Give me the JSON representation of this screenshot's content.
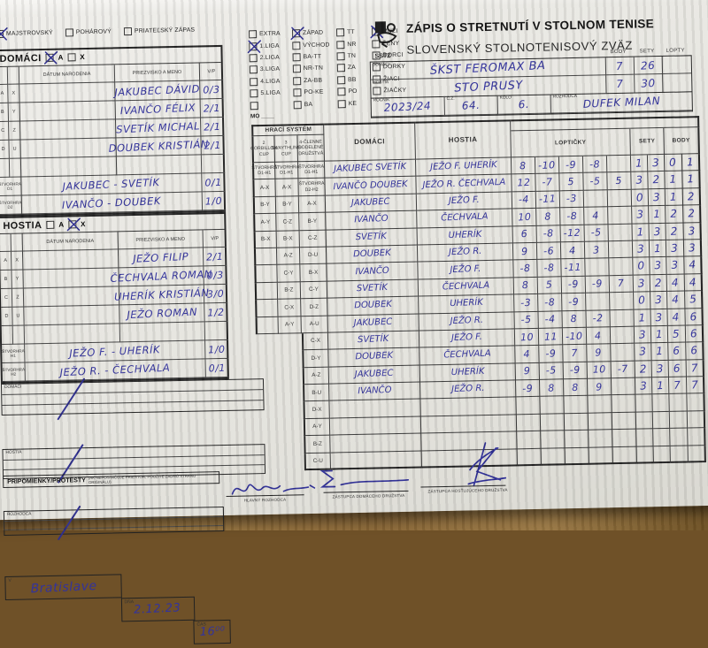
{
  "header": {
    "title": "ZÁPIS O STRETNUTÍ V STOLNOM TENISE",
    "subtitle": "SLOVENSKÝ STOLNOTENISOVÝ ZVÄZ",
    "logo_text": "SSTZ",
    "score_columns": [
      "BODY",
      "SETY",
      "LOPTY"
    ],
    "domaci_label": "DOMÁCI",
    "hostia_label": "HOSTIA",
    "home_team": {
      "name": "ŠKST FEROMAX BA",
      "body": "7",
      "sety": "26",
      "lopty": ""
    },
    "away_team": {
      "name": "STO PRUSY",
      "body": "7",
      "sety": "30",
      "lopty": ""
    },
    "rocnik_label": "ROČNÍK",
    "rocnik_value": "2023/24",
    "cz_label": "Č.Z.",
    "cz_value": "64.",
    "kolo_label": "KOLO",
    "kolo_value": "6.",
    "rozhodca_label": "ROZHODCA",
    "rozhodca_value": "DUFEK MILAN"
  },
  "match_type": {
    "options": [
      {
        "label": "MAJSTROVSKÝ",
        "checked": true
      },
      {
        "label": "POHÁROVÝ",
        "checked": false
      },
      {
        "label": "PRIATEĽSKÝ ZÁPAS",
        "checked": false
      }
    ]
  },
  "league_panel": {
    "mo_label": "MO ____",
    "col1": [
      {
        "label": "EXTRA",
        "checked": false
      },
      {
        "label": "1.LIGA",
        "checked": true
      },
      {
        "label": "2.LIGA",
        "checked": false
      },
      {
        "label": "3.LIGA",
        "checked": false
      },
      {
        "label": "4.LIGA",
        "checked": false
      },
      {
        "label": "5.LIGA",
        "checked": false
      },
      {
        "label": "",
        "checked": false
      }
    ],
    "col2": [
      {
        "label": "ZÁPAD",
        "checked": true
      },
      {
        "label": "VÝCHOD",
        "checked": false
      },
      {
        "label": "BA-TT",
        "checked": false
      },
      {
        "label": "NR-TN",
        "checked": false
      },
      {
        "label": "ZA-BB",
        "checked": false
      },
      {
        "label": "PO-KE",
        "checked": false
      },
      {
        "label": "BA",
        "checked": false
      }
    ],
    "col3": [
      {
        "label": "TT",
        "checked": false
      },
      {
        "label": "NR",
        "checked": false
      },
      {
        "label": "TN",
        "checked": false
      },
      {
        "label": "ZA",
        "checked": false
      },
      {
        "label": "BB",
        "checked": false
      },
      {
        "label": "PO",
        "checked": false
      },
      {
        "label": "KE",
        "checked": false
      }
    ],
    "col4": [
      {
        "label": "MUŽI",
        "checked": true
      },
      {
        "label": "ŽENY",
        "checked": false
      },
      {
        "label": "DORCI",
        "checked": false
      },
      {
        "label": "DORKY",
        "checked": false
      },
      {
        "label": "ŽIACI",
        "checked": false
      },
      {
        "label": "ŽIAČKY",
        "checked": false
      }
    ]
  },
  "home_roster": {
    "section_label": "DOMÁCI",
    "check_a_label": "A",
    "check_x_label": "X",
    "check_a": true,
    "check_x": false,
    "col_headers": {
      "birth": "DÁTUM NARODENIA",
      "name": "PRIEZVISKO A MENO",
      "vp": "V/P"
    },
    "players": [
      {
        "r1": "A",
        "r2": "X",
        "birth": "",
        "name": "JAKUBEC DÁVID",
        "vp": "0/3"
      },
      {
        "r1": "B",
        "r2": "Y",
        "birth": "",
        "name": "IVANČO FÉLIX",
        "vp": "2/1"
      },
      {
        "r1": "C",
        "r2": "Z",
        "birth": "",
        "name": "SVETÍK MICHAL",
        "vp": "2/1"
      },
      {
        "r1": "D",
        "r2": "U",
        "birth": "",
        "name": "DOUBEK KRISTIÁN",
        "vp": "2/1"
      },
      {
        "r1": "",
        "r2": "",
        "birth": "",
        "name": "",
        "vp": ""
      }
    ],
    "doubles": [
      {
        "label": "ŠTVORHRA D1",
        "name": "JAKUBEC - SVETÍK",
        "vp": "0/1"
      },
      {
        "label": "ŠTVORHRA D2",
        "name": "IVANČO - DOUBEK",
        "vp": "1/0"
      }
    ]
  },
  "away_roster": {
    "section_label": "HOSTIA",
    "check_a_label": "A",
    "check_x_label": "X",
    "check_a": false,
    "check_x": true,
    "col_headers": {
      "birth": "DÁTUM NARODENIA",
      "name": "PRIEZVISKO A MENO",
      "vp": "V/P"
    },
    "players": [
      {
        "r1": "A",
        "r2": "X",
        "birth": "",
        "name": "JEŽO FILIP",
        "vp": "2/1"
      },
      {
        "r1": "B",
        "r2": "Y",
        "birth": "",
        "name": "ČECHVALA ROMAN",
        "vp": "0/3"
      },
      {
        "r1": "C",
        "r2": "Z",
        "birth": "",
        "name": "UHERÍK KRISTIÁN",
        "vp": "3/0"
      },
      {
        "r1": "D",
        "r2": "U",
        "birth": "",
        "name": "JEŽO ROMAN",
        "vp": "1/2"
      },
      {
        "r1": "",
        "r2": "",
        "birth": "",
        "name": "",
        "vp": ""
      }
    ],
    "doubles": [
      {
        "label": "ŠTVORHRA H1",
        "name": "JEŽO F. - UHERÍK",
        "vp": "1/0"
      },
      {
        "label": "ŠTVORHRA H2",
        "name": "JEŽO R. - ČECHVALA",
        "vp": "0/1"
      }
    ]
  },
  "match_table": {
    "hraci_system_label": "HRACÍ SYSTÉM",
    "sys_headers": [
      "2 CORBILLON CUP",
      "3 SWAYTHLING CUP",
      "4-ČLENNÉ ODDELENÉ DRUŽSTVÁ"
    ],
    "domaci_label": "DOMÁCI",
    "hostia_label": "HOSTIA",
    "balls_label": "LOPTIČKY",
    "sety_label": "SETY",
    "body_label": "BODY",
    "rows": [
      {
        "s1": "ŠTVORHRA D1-H1",
        "s2": "ŠTVORHRA D1-H1",
        "s3": "ŠTVORHRA D1-H1",
        "dom": "JAKUBEC SVETÍK",
        "host": "JEŽO F. UHERÍK",
        "balls": [
          "8",
          "-10",
          "-9",
          "-8",
          ""
        ],
        "sety": [
          "1",
          "3"
        ],
        "body": [
          "0",
          "1"
        ]
      },
      {
        "s1": "A-X",
        "s2": "A-X",
        "s3": "ŠTVORHRA D2-H2",
        "dom": "IVANČO DOUBEK",
        "host": "JEŽO R. ČECHVALA",
        "balls": [
          "12",
          "-7",
          "5",
          "-5",
          "5"
        ],
        "sety": [
          "3",
          "2"
        ],
        "body": [
          "1",
          "1"
        ]
      },
      {
        "s1": "B-Y",
        "s2": "B-Y",
        "s3": "A-X",
        "dom": "JAKUBEC",
        "host": "JEŽO F.",
        "balls": [
          "-4",
          "-11",
          "-3",
          "",
          ""
        ],
        "sety": [
          "0",
          "3"
        ],
        "body": [
          "1",
          "2"
        ]
      },
      {
        "s1": "A-Y",
        "s2": "C-Z",
        "s3": "B-Y",
        "dom": "IVANČO",
        "host": "ČECHVALA",
        "balls": [
          "10",
          "8",
          "-8",
          "4",
          ""
        ],
        "sety": [
          "3",
          "1"
        ],
        "body": [
          "2",
          "2"
        ]
      },
      {
        "s1": "B-X",
        "s2": "B-X",
        "s3": "C-Z",
        "dom": "SVETÍK",
        "host": "UHERÍK",
        "balls": [
          "6",
          "-8",
          "-12",
          "-5",
          ""
        ],
        "sety": [
          "1",
          "3"
        ],
        "body": [
          "2",
          "3"
        ]
      },
      {
        "s1": "",
        "s2": "A-Z",
        "s3": "D-U",
        "dom": "DOUBEK",
        "host": "JEŽO R.",
        "balls": [
          "9",
          "-6",
          "4",
          "3",
          ""
        ],
        "sety": [
          "3",
          "1"
        ],
        "body": [
          "3",
          "3"
        ]
      },
      {
        "s1": "",
        "s2": "C-Y",
        "s3": "B-X",
        "dom": "IVANČO",
        "host": "JEŽO F.",
        "balls": [
          "-8",
          "-8",
          "-11",
          "",
          ""
        ],
        "sety": [
          "0",
          "3"
        ],
        "body": [
          "3",
          "4"
        ]
      },
      {
        "s1": "",
        "s2": "B-Z",
        "s3": "C-Y",
        "dom": "SVETÍK",
        "host": "ČECHVALA",
        "balls": [
          "8",
          "5",
          "-9",
          "-9",
          "7"
        ],
        "sety": [
          "3",
          "2"
        ],
        "body": [
          "4",
          "4"
        ]
      },
      {
        "s1": "",
        "s2": "C-X",
        "s3": "D-Z",
        "dom": "DOUBEK",
        "host": "UHERÍK",
        "balls": [
          "-3",
          "-8",
          "-9",
          "",
          ""
        ],
        "sety": [
          "0",
          "3"
        ],
        "body": [
          "4",
          "5"
        ]
      },
      {
        "s1": "",
        "s2": "A-Y",
        "s3": "A-U",
        "dom": "JAKUBEC",
        "host": "JEŽO R.",
        "balls": [
          "-5",
          "-4",
          "8",
          "-2",
          ""
        ],
        "sety": [
          "1",
          "3"
        ],
        "body": [
          "4",
          "6"
        ]
      },
      {
        "s1": null,
        "s2": null,
        "s3": "C-X",
        "dom": "SVETÍK",
        "host": "JEŽO F.",
        "balls": [
          "10",
          "11",
          "-10",
          "4",
          ""
        ],
        "sety": [
          "3",
          "1"
        ],
        "body": [
          "5",
          "6"
        ]
      },
      {
        "s1": null,
        "s2": null,
        "s3": "D-Y",
        "dom": "DOUBEK",
        "host": "ČECHVALA",
        "balls": [
          "4",
          "-9",
          "7",
          "9",
          ""
        ],
        "sety": [
          "3",
          "1"
        ],
        "body": [
          "6",
          "6"
        ]
      },
      {
        "s1": null,
        "s2": null,
        "s3": "A-Z",
        "dom": "JAKUBEC",
        "host": "UHERÍK",
        "balls": [
          "9",
          "-5",
          "-9",
          "10",
          "-7"
        ],
        "sety": [
          "2",
          "3"
        ],
        "body": [
          "6",
          "7"
        ]
      },
      {
        "s1": null,
        "s2": null,
        "s3": "B-U",
        "dom": "IVANČO",
        "host": "JEŽO R.",
        "balls": [
          "-9",
          "8",
          "8",
          "9",
          ""
        ],
        "sety": [
          "3",
          "1"
        ],
        "body": [
          "7",
          "7"
        ]
      },
      {
        "s1": null,
        "s2": null,
        "s3": "D-X",
        "dom": "",
        "host": "",
        "balls": [
          "",
          "",
          "",
          "",
          ""
        ],
        "sety": [
          "",
          ""
        ],
        "body": [
          "",
          ""
        ]
      },
      {
        "s1": null,
        "s2": null,
        "s3": "A-Y",
        "dom": "",
        "host": "",
        "balls": [
          "",
          "",
          "",
          "",
          ""
        ],
        "sety": [
          "",
          ""
        ],
        "body": [
          "",
          ""
        ]
      },
      {
        "s1": null,
        "s2": null,
        "s3": "B-Z",
        "dom": "",
        "host": "",
        "balls": [
          "",
          "",
          "",
          "",
          ""
        ],
        "sety": [
          "",
          ""
        ],
        "body": [
          "",
          ""
        ]
      },
      {
        "s1": null,
        "s2": null,
        "s3": "C-U",
        "dom": "",
        "host": "",
        "balls": [
          "",
          "",
          "",
          "",
          ""
        ],
        "sety": [
          "",
          ""
        ],
        "body": [
          "",
          ""
        ]
      }
    ]
  },
  "lower_boxes": {
    "domaci_label": "DOMÁCI",
    "hostia_label": "HOSTIA",
    "rozhodca_label": "ROZHODCA"
  },
  "remarks": {
    "label": "PRIPOMIENKY/PROTESTY",
    "note": "(AK NEPOSTAČUJE PRIESTOR, POUŽITE ZADNÚ STRANU ORIGINÁLU)"
  },
  "footer": {
    "v_label": "V",
    "v_value": "Bratislave",
    "dna_label": "DŇA",
    "dna_value": "2.12.23",
    "cas_label": "ČAS",
    "cas_value": "16⁰⁰",
    "sign1_label": "HLAVNÝ ROZHODCA",
    "sign2_label": "ZÁSTUPCA DOMÁCEHO DRUŽSTVA",
    "sign3_label": "ZÁSTUPCA HOSŤUJÚCEHO DRUŽSTVA"
  },
  "colors": {
    "ink_blue": "#33339c",
    "paper": "#e9e8e3",
    "wood": "#8a6a3e",
    "print_ink": "#222222"
  }
}
